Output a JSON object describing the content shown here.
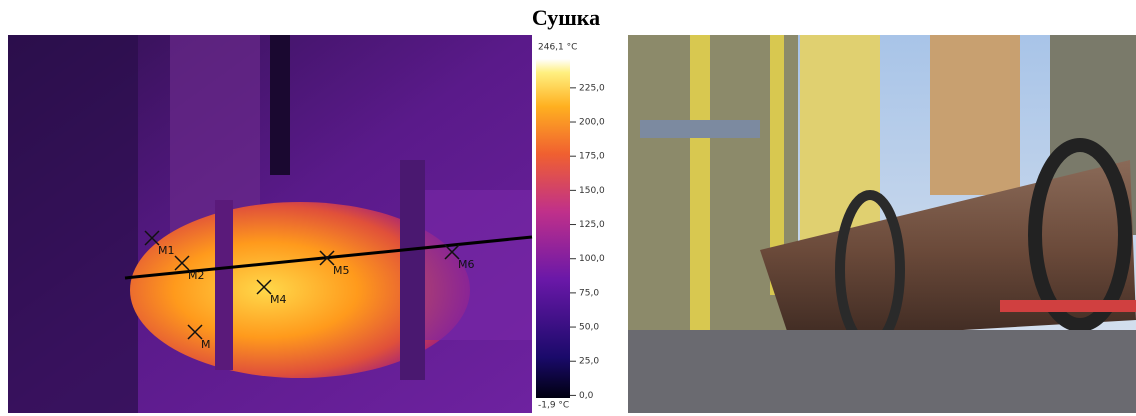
{
  "title": "Сушка",
  "thermal": {
    "markers": [
      "M1",
      "M2",
      "M",
      "M4",
      "M5",
      "M6"
    ],
    "scale": {
      "min": {
        "value": -1.9,
        "label": "-1,9 °C"
      },
      "max": {
        "value": 246.1,
        "label": "246,1 °C"
      },
      "ticks": [
        {
          "value": 0,
          "label": "0,0"
        },
        {
          "value": 25,
          "label": "25,0"
        },
        {
          "value": 50,
          "label": "50,0"
        },
        {
          "value": 75,
          "label": "75,0"
        },
        {
          "value": 100,
          "label": "100,0"
        },
        {
          "value": 125,
          "label": "125,0"
        },
        {
          "value": 150,
          "label": "150,0"
        },
        {
          "value": 175,
          "label": "175,0"
        },
        {
          "value": 200,
          "label": "200,0"
        },
        {
          "value": 225,
          "label": "225,0"
        }
      ]
    }
  }
}
